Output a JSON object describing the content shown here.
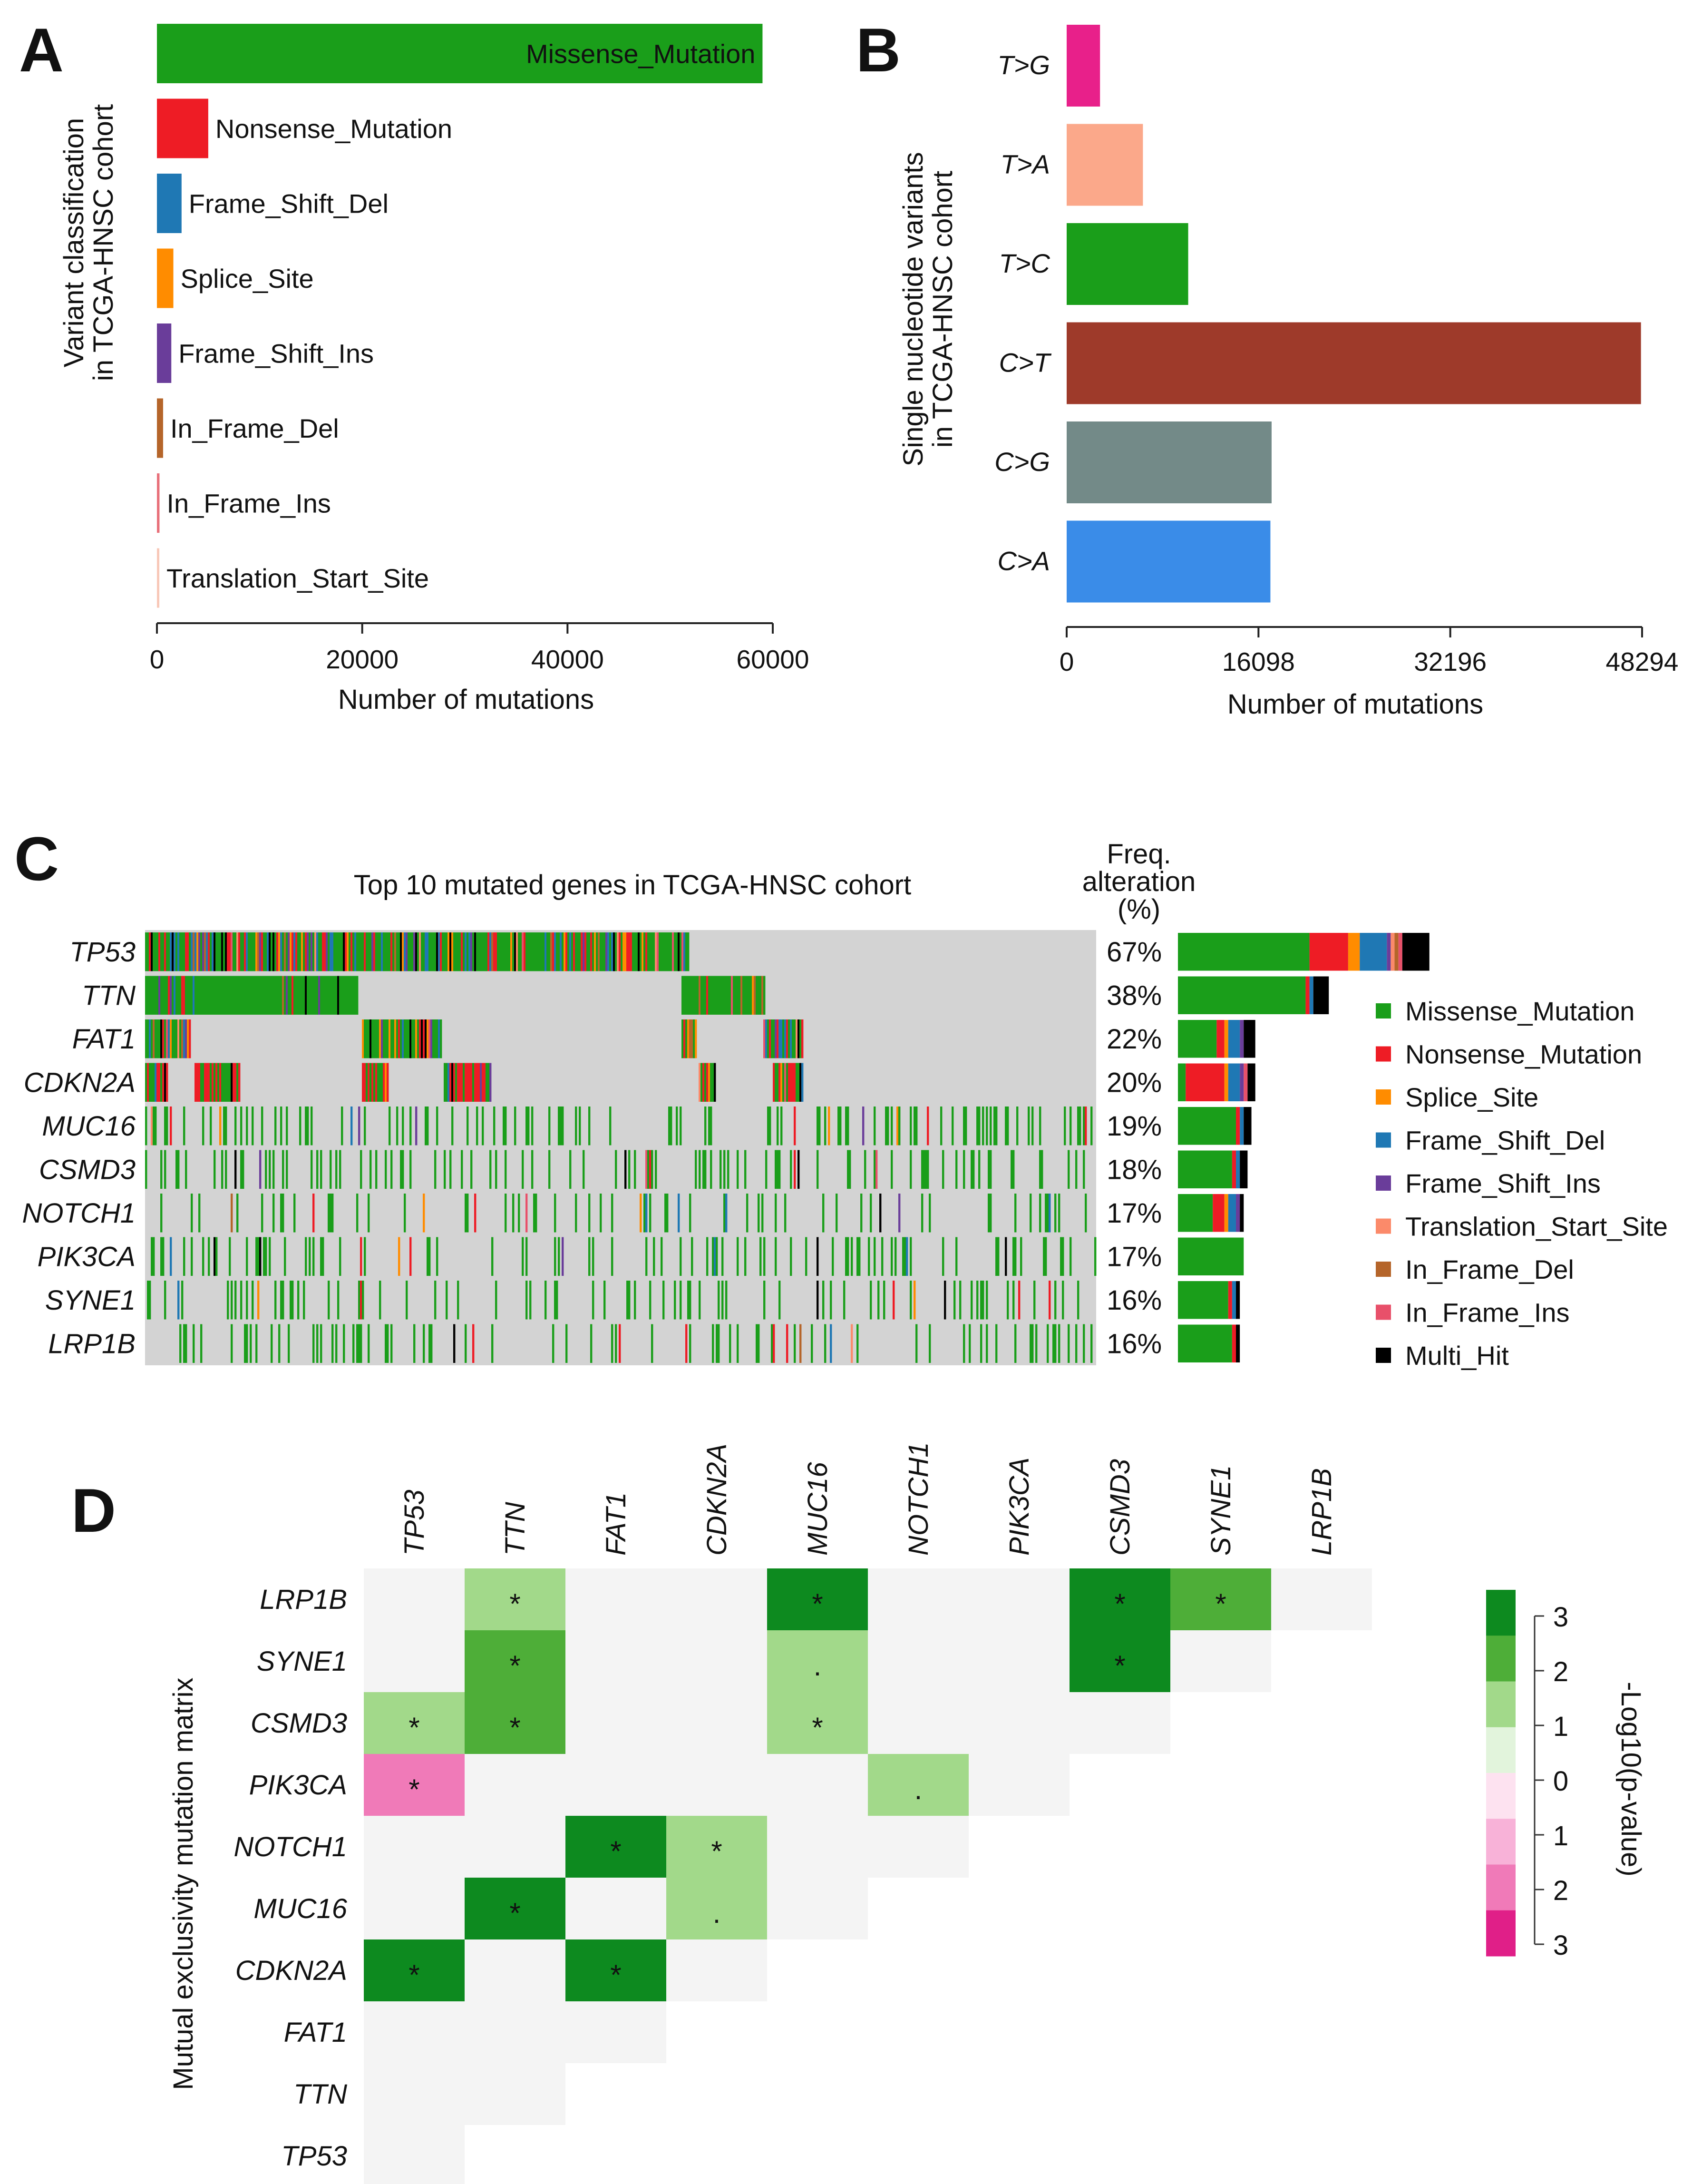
{
  "panels": {
    "A": {
      "letter": "A"
    },
    "B": {
      "letter": "B"
    },
    "C": {
      "letter": "C"
    },
    "D": {
      "letter": "D"
    }
  },
  "chart_data": [
    {
      "id": "A",
      "type": "bar",
      "orientation": "horizontal",
      "ylabel_lines": [
        "Variant classification",
        "in TCGA-HNSC cohort"
      ],
      "xlabel": "Number of mutations",
      "xlim": [
        0,
        60000
      ],
      "xticks": [
        0,
        20000,
        40000,
        60000
      ],
      "tick_labels": [
        "0",
        "20000",
        "40000",
        "60000"
      ],
      "categories": [
        "Missense_Mutation",
        "Nonsense_Mutation",
        "Frame_Shift_Del",
        "Splice_Site",
        "Frame_Shift_Ins",
        "In_Frame_Del",
        "In_Frame_Ins",
        "Translation_Start_Site"
      ],
      "values": [
        59000,
        5000,
        2400,
        1600,
        1400,
        600,
        250,
        120
      ],
      "colors": [
        "#1a9e1a",
        "#ee1c25",
        "#1f78b4",
        "#ff8c00",
        "#6a3d9a",
        "#b5652a",
        "#e8707a",
        "#f8c8b8"
      ]
    },
    {
      "id": "B",
      "type": "bar",
      "orientation": "horizontal",
      "ylabel_lines": [
        "Single nucleotide variants",
        "in TCGA-HNSC cohort"
      ],
      "xlabel": "Number of mutations",
      "xlim": [
        0,
        48294
      ],
      "xticks": [
        0,
        16098,
        32196,
        48294
      ],
      "tick_labels": [
        "0",
        "16098",
        "32196",
        "48294"
      ],
      "categories": [
        "T>G",
        "T>A",
        "T>C",
        "C>T",
        "C>G",
        "C>A"
      ],
      "values": [
        2800,
        6400,
        10200,
        48200,
        17200,
        17100
      ],
      "colors": [
        "#e8208a",
        "#fba88a",
        "#1a9e1a",
        "#9e3a2a",
        "#738a88",
        "#3a8ce8"
      ]
    },
    {
      "id": "C",
      "type": "heatmap",
      "title": "Top 10 mutated genes in TCGA-HNSC cohort",
      "freq_header_lines": [
        "Freq.",
        "alteration",
        "(%)"
      ],
      "genes": [
        "TP53",
        "TTN",
        "FAT1",
        "CDKN2A",
        "MUC16",
        "CSMD3",
        "NOTCH1",
        "PIK3CA",
        "SYNE1",
        "LRP1B"
      ],
      "freq_labels": [
        "67%",
        "38%",
        "22%",
        "20%",
        "19%",
        "18%",
        "17%",
        "17%",
        "16%",
        "16%"
      ],
      "freq_values": [
        67,
        38,
        22,
        20,
        19,
        18,
        17,
        17,
        16,
        16
      ],
      "freq_composition": [
        [
          34,
          10,
          3,
          7,
          1,
          1,
          1,
          1,
          7
        ],
        [
          33,
          1,
          0,
          1,
          0,
          0,
          0,
          0,
          4
        ],
        [
          10,
          2,
          1,
          3,
          1,
          0,
          0,
          0,
          3
        ],
        [
          2,
          10,
          1,
          3,
          1,
          0,
          0,
          1,
          2
        ],
        [
          15,
          1,
          0,
          1,
          0,
          0,
          0,
          0,
          2
        ],
        [
          14,
          1,
          0,
          1,
          0,
          0,
          0,
          0,
          2
        ],
        [
          9,
          3,
          1,
          2,
          1,
          0,
          0,
          0,
          1
        ],
        [
          17,
          0,
          0,
          0,
          0,
          0,
          0,
          0,
          0
        ],
        [
          13,
          1,
          0,
          1,
          0,
          0,
          0,
          0,
          1
        ],
        [
          14,
          1,
          0,
          0,
          0,
          0,
          0,
          0,
          1
        ]
      ],
      "legend": [
        {
          "label": "Missense_Mutation",
          "color": "#1a9e1a"
        },
        {
          "label": "Nonsense_Mutation",
          "color": "#ee1c25"
        },
        {
          "label": "Splice_Site",
          "color": "#ff8c00"
        },
        {
          "label": "Frame_Shift_Del",
          "color": "#1f78b4"
        },
        {
          "label": "Frame_Shift_Ins",
          "color": "#6a3d9a"
        },
        {
          "label": "Translation_Start_Site",
          "color": "#fb8a6a"
        },
        {
          "label": "In_Frame_Del",
          "color": "#b5652a"
        },
        {
          "label": "In_Frame_Ins",
          "color": "#e8506a"
        },
        {
          "label": "Multi_Hit",
          "color": "#000000"
        }
      ],
      "background_color": "#d3d3d3"
    },
    {
      "id": "D",
      "type": "heatmap",
      "ylabel": "Mutual exclusivity mutation matrix",
      "col_genes": [
        "TP53",
        "TTN",
        "FAT1",
        "CDKN2A",
        "MUC16",
        "NOTCH1",
        "PIK3CA",
        "CSMD3",
        "SYNE1",
        "LRP1B"
      ],
      "row_genes": [
        "LRP1B",
        "SYNE1",
        "CSMD3",
        "PIK3CA",
        "NOTCH1",
        "MUC16",
        "CDKN2A",
        "FAT1",
        "TTN",
        "TP53"
      ],
      "cells": [
        {
          "row": "LRP1B",
          "col": "TTN",
          "value": 1.2,
          "mark": "*"
        },
        {
          "row": "LRP1B",
          "col": "MUC16",
          "value": 2.5,
          "mark": "*"
        },
        {
          "row": "LRP1B",
          "col": "CSMD3",
          "value": 3,
          "mark": "*"
        },
        {
          "row": "LRP1B",
          "col": "SYNE1",
          "value": 2,
          "mark": "*"
        },
        {
          "row": "SYNE1",
          "col": "TTN",
          "value": 2,
          "mark": "*"
        },
        {
          "row": "SYNE1",
          "col": "MUC16",
          "value": 1.2,
          "mark": "."
        },
        {
          "row": "SYNE1",
          "col": "CSMD3",
          "value": 3,
          "mark": "*"
        },
        {
          "row": "CSMD3",
          "col": "TP53",
          "value": 1.2,
          "mark": "*"
        },
        {
          "row": "CSMD3",
          "col": "TTN",
          "value": 2,
          "mark": "*"
        },
        {
          "row": "CSMD3",
          "col": "MUC16",
          "value": 1.2,
          "mark": "*"
        },
        {
          "row": "PIK3CA",
          "col": "TP53",
          "value": -2,
          "mark": "*"
        },
        {
          "row": "PIK3CA",
          "col": "NOTCH1",
          "value": 1.2,
          "mark": "."
        },
        {
          "row": "NOTCH1",
          "col": "FAT1",
          "value": 3,
          "mark": "*"
        },
        {
          "row": "NOTCH1",
          "col": "CDKN2A",
          "value": 1.2,
          "mark": "*"
        },
        {
          "row": "MUC16",
          "col": "TTN",
          "value": 3,
          "mark": "*"
        },
        {
          "row": "MUC16",
          "col": "CDKN2A",
          "value": 1.2,
          "mark": "."
        },
        {
          "row": "CDKN2A",
          "col": "TP53",
          "value": 3,
          "mark": "*"
        },
        {
          "row": "CDKN2A",
          "col": "FAT1",
          "value": 3,
          "mark": "*"
        }
      ],
      "colorbar": {
        "label": "-Log10(p-value)",
        "tick_labels": [
          "3",
          "2",
          "1",
          "0",
          "1",
          "2",
          "3"
        ],
        "colors": [
          "#0d8a1f",
          "#4eae38",
          "#a2d98a",
          "#e2f4dc",
          "#fde2f0",
          "#f8b2d8",
          "#f07ab8",
          "#e01f88"
        ]
      }
    }
  ]
}
